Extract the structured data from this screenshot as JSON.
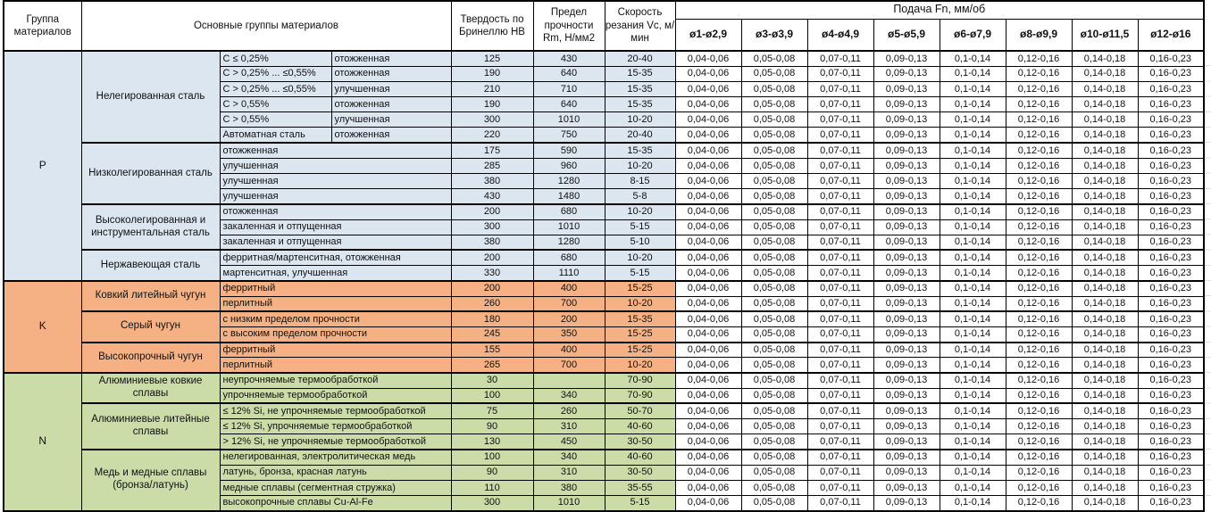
{
  "table": {
    "flag_color": "#1E7A1E",
    "header": {
      "col_group": "Группа материалов",
      "col_main_groups": "Основные группы материалов",
      "col_hardness": "Твердость по Бринеллю HB",
      "col_strength": "Предел прочности Rm, Н/мм2",
      "col_speed": "Скорость резания Vc, м/мин",
      "feed_title": "Подача Fn, мм/об",
      "feed_columns": [
        "ø1-ø2,9",
        "ø3-ø3,9",
        "ø4-ø4,9",
        "ø5-ø5,9",
        "ø6-ø7,9",
        "ø8-ø9,9",
        "ø10-ø11,5",
        "ø12-ø16"
      ]
    },
    "feed_values": [
      "0,04-0,06",
      "0,05-0,08",
      "0,07-0,11",
      "0,09-0,13",
      "0,1-0,14",
      "0,12-0,16",
      "0,14-0,18",
      "0,16-0,23"
    ],
    "groups": [
      {
        "code": "P",
        "color": "#DCE6F1",
        "subgroups": [
          {
            "name": "Нелегированная сталь",
            "rows": [
              {
                "c": "С ≤ 0,25%",
                "state": "отожженная",
                "hb": "125",
                "rm": "430",
                "vc": "20-40",
                "flag": false
              },
              {
                "c": "С > 0,25% ... ≤0,55%",
                "state": "отожженная",
                "hb": "190",
                "rm": "640",
                "vc": "15-35",
                "flag": false
              },
              {
                "c": "С > 0,25% ... ≤0,55%",
                "state": "улучшенная",
                "hb": "210",
                "rm": "710",
                "vc": "15-35",
                "flag": false
              },
              {
                "c": "С > 0,55%",
                "state": "отожженная",
                "hb": "190",
                "rm": "640",
                "vc": "15-35",
                "flag": false
              },
              {
                "c": "С > 0,55%",
                "state": "улучшенная",
                "hb": "300",
                "rm": "1010",
                "vc": "10-20",
                "flag": true
              },
              {
                "c": "Автоматная сталь",
                "state": "отожженная",
                "hb": "220",
                "rm": "750",
                "vc": "20-40",
                "flag": false
              }
            ]
          },
          {
            "name": "Низколегированная сталь",
            "rows": [
              {
                "state": "отожженная",
                "hb": "175",
                "rm": "590",
                "vc": "15-35",
                "flag": false
              },
              {
                "state": "улучшенная",
                "hb": "285",
                "rm": "960",
                "vc": "10-20",
                "flag": true
              },
              {
                "state": "улучшенная",
                "hb": "380",
                "rm": "1280",
                "vc": "8-15",
                "flag": true
              },
              {
                "state": "улучшенная",
                "hb": "430",
                "rm": "1480",
                "vc": "5-8",
                "flag": false
              }
            ]
          },
          {
            "name": "Высоколегированная и инструментальная сталь",
            "rows": [
              {
                "state": "отожженная",
                "hb": "200",
                "rm": "680",
                "vc": "10-20",
                "flag": true
              },
              {
                "state": "закаленная и отпущенная",
                "hb": "300",
                "rm": "1010",
                "vc": "5-15",
                "flag": true
              },
              {
                "state": "закаленная и отпущенная",
                "hb": "380",
                "rm": "1280",
                "vc": "5-10",
                "flag": false
              }
            ]
          },
          {
            "name": "Нержавеющая сталь",
            "rows": [
              {
                "state": "ферритная/мартенситная, отожженная",
                "hb": "200",
                "rm": "680",
                "vc": "10-20",
                "flag": true
              },
              {
                "state": "мартенситная, улучшенная",
                "hb": "330",
                "rm": "1110",
                "vc": "5-15",
                "flag": true
              }
            ]
          }
        ]
      },
      {
        "code": "K",
        "color": "#F5B183",
        "subgroups": [
          {
            "name": "Ковкий литейный чугун",
            "rows": [
              {
                "state": "ферритный",
                "hb": "200",
                "rm": "400",
                "vc": "15-25",
                "flag": false
              },
              {
                "state": "перлитный",
                "hb": "260",
                "rm": "700",
                "vc": "10-20",
                "flag": true
              }
            ]
          },
          {
            "name": "Серый чугун",
            "rows": [
              {
                "state": "с низким пределом прочности",
                "hb": "180",
                "rm": "200",
                "vc": "15-35",
                "flag": false
              },
              {
                "state": "с высоким пределом прочности",
                "hb": "245",
                "rm": "350",
                "vc": "15-25",
                "flag": false
              }
            ]
          },
          {
            "name": "Высокопрочный чугун",
            "rows": [
              {
                "state": "ферритный",
                "hb": "155",
                "rm": "400",
                "vc": "15-25",
                "flag": false
              },
              {
                "state": "перлитный",
                "hb": "265",
                "rm": "700",
                "vc": "10-20",
                "flag": true
              }
            ]
          }
        ]
      },
      {
        "code": "N",
        "color": "#CBDCA9",
        "subgroups": [
          {
            "name": "Алюминиевые ковкие сплавы",
            "rows": [
              {
                "state": "неупрочняемые термообработкой",
                "hb": "30",
                "rm": "",
                "vc": "70-90",
                "flag": false
              },
              {
                "state": "упрочняемые термообработкой",
                "hb": "100",
                "rm": "340",
                "vc": "70-90",
                "flag": false
              }
            ]
          },
          {
            "name": "Алюминиевые литейные сплавы",
            "rows": [
              {
                "state": "≤ 12% Si, не упрочняемые термообработкой",
                "hb": "75",
                "rm": "260",
                "vc": "50-70",
                "flag": false
              },
              {
                "state": "≤ 12% Si, упрочняемые термообработкой",
                "hb": "90",
                "rm": "310",
                "vc": "40-60",
                "flag": false
              },
              {
                "state": "> 12% Si, не упрочняемые термообработкой",
                "hb": "130",
                "rm": "450",
                "vc": "30-50",
                "flag": false
              }
            ]
          },
          {
            "name": "Медь и медные сплавы (бронза/латунь)",
            "rows": [
              {
                "state": "нелегированная, электролитическая медь",
                "hb": "100",
                "rm": "340",
                "vc": "40-60",
                "flag": false
              },
              {
                "state": "латунь, бронза, красная латунь",
                "hb": "90",
                "rm": "310",
                "vc": "30-50",
                "flag": false
              },
              {
                "state": "медные сплавы (сегментная стружка)",
                "hb": "110",
                "rm": "380",
                "vc": "35-55",
                "flag": false
              },
              {
                "state": "высокопрочные сплавы Cu-Al-Fe",
                "hb": "300",
                "rm": "1010",
                "vc": "5-15",
                "flag": true
              }
            ]
          }
        ]
      }
    ]
  }
}
